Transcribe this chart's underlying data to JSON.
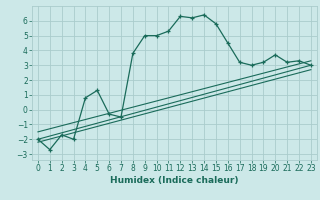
{
  "xlabel": "Humidex (Indice chaleur)",
  "bg_color": "#cce8e8",
  "grid_color": "#aacccc",
  "line_color": "#1a6b5a",
  "xlim": [
    -0.5,
    23.5
  ],
  "ylim": [
    -3.4,
    7.0
  ],
  "xticks": [
    0,
    1,
    2,
    3,
    4,
    5,
    6,
    7,
    8,
    9,
    10,
    11,
    12,
    13,
    14,
    15,
    16,
    17,
    18,
    19,
    20,
    21,
    22,
    23
  ],
  "yticks": [
    -3,
    -2,
    -1,
    0,
    1,
    2,
    3,
    4,
    5,
    6
  ],
  "series1_x": [
    0,
    1,
    2,
    3,
    4,
    5,
    6,
    7,
    8,
    9,
    10,
    11,
    12,
    13,
    14,
    15,
    16,
    17,
    18,
    19,
    20,
    21,
    22,
    23
  ],
  "series1_y": [
    -2.0,
    -2.7,
    -1.7,
    -2.0,
    0.8,
    1.3,
    -0.3,
    -0.5,
    3.8,
    5.0,
    5.0,
    5.3,
    6.3,
    6.2,
    6.4,
    5.8,
    4.5,
    3.2,
    3.0,
    3.2,
    3.7,
    3.2,
    3.3,
    3.0
  ],
  "line2_x": [
    0,
    23
  ],
  "line2_y": [
    -2.0,
    3.0
  ],
  "line3_x": [
    0,
    23
  ],
  "line3_y": [
    -1.5,
    3.3
  ],
  "line4_x": [
    0,
    23
  ],
  "line4_y": [
    -2.2,
    2.7
  ],
  "tick_fontsize": 5.5,
  "xlabel_fontsize": 6.5
}
